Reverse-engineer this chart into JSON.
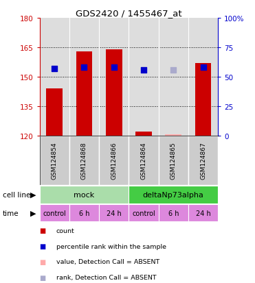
{
  "title": "GDS2420 / 1455467_at",
  "samples": [
    "GSM124854",
    "GSM124868",
    "GSM124866",
    "GSM124864",
    "GSM124865",
    "GSM124867"
  ],
  "bar_values": [
    144,
    163,
    164,
    122,
    120.5,
    157
  ],
  "bar_bottom": 120,
  "bar_colors": [
    "#cc0000",
    "#cc0000",
    "#cc0000",
    "#cc0000",
    "#ffaaaa",
    "#cc0000"
  ],
  "dot_right_values": [
    57,
    58,
    58,
    56,
    56,
    58
  ],
  "dot_colors": [
    "#0000cc",
    "#0000cc",
    "#0000cc",
    "#0000cc",
    "#aaaacc",
    "#0000cc"
  ],
  "ylim_left": [
    120,
    180
  ],
  "yticks_left": [
    120,
    135,
    150,
    165,
    180
  ],
  "ylim_right": [
    0,
    100
  ],
  "yticks_right": [
    0,
    25,
    50,
    75,
    100
  ],
  "ytick_labels_right": [
    "0",
    "25",
    "50",
    "75",
    "100%"
  ],
  "cell_line_labels": [
    "mock",
    "deltaNp73alpha"
  ],
  "cell_line_spans": [
    [
      0,
      3
    ],
    [
      3,
      6
    ]
  ],
  "cell_line_colors": [
    "#aaddaa",
    "#44cc44"
  ],
  "time_labels": [
    "control",
    "6 h",
    "24 h",
    "control",
    "6 h",
    "24 h"
  ],
  "time_color": "#dd88dd",
  "legend_items": [
    {
      "label": "count",
      "color": "#cc0000"
    },
    {
      "label": "percentile rank within the sample",
      "color": "#0000cc"
    },
    {
      "label": "value, Detection Call = ABSENT",
      "color": "#ffaaaa"
    },
    {
      "label": "rank, Detection Call = ABSENT",
      "color": "#aaaacc"
    }
  ],
  "bar_width": 0.55,
  "dot_size": 35,
  "background_color": "#ffffff",
  "plot_bg_color": "#dddddd",
  "sample_box_color": "#cccccc",
  "label_color_left": "#cc0000",
  "label_color_right": "#0000cc",
  "cell_line_row_label": "cell line",
  "time_row_label": "time",
  "n": 6
}
